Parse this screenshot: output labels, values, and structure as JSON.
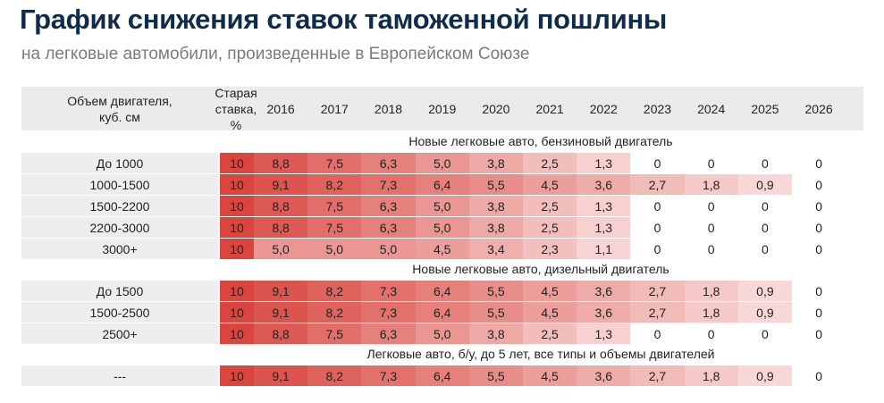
{
  "title": "График снижения ставок таможенной пошлины",
  "subtitle": "на легковые автомобили, произведенные в Европейском Союзе",
  "colors": {
    "title": "#0f2d4a",
    "header_bg": "#ebebeb",
    "row_label_bg": "#eeeeee",
    "scale_max": "#d9463f",
    "scale_min": "#fae6e5"
  },
  "chart_data": {
    "type": "table",
    "title": "График снижения ставок таможенной пошлины",
    "subtitle": "на легковые автомобили, произведенные в Европейском Союзе",
    "header": {
      "volume": "Объем двигателя,\nкуб. см",
      "old_rate": "Старая\nставка, %"
    },
    "years": [
      "2016",
      "2017",
      "2018",
      "2019",
      "2020",
      "2021",
      "2022",
      "2023",
      "2024",
      "2025",
      "2026"
    ],
    "sections": [
      {
        "name": "Новые легковые авто, бензиновый двигатель",
        "rows": [
          {
            "label": "До 1000",
            "old_rate": "10",
            "values": [
              "8,8",
              "7,5",
              "6,3",
              "5,0",
              "3,8",
              "2,5",
              "1,3",
              "0",
              "0",
              "0",
              "0"
            ]
          },
          {
            "label": "1000-1500",
            "old_rate": "10",
            "values": [
              "9,1",
              "8,2",
              "7,3",
              "6,4",
              "5,5",
              "4,5",
              "3,6",
              "2,7",
              "1,8",
              "0,9",
              "0"
            ]
          },
          {
            "label": "1500-2200",
            "old_rate": "10",
            "values": [
              "8,8",
              "7,5",
              "6,3",
              "5,0",
              "3,8",
              "2,5",
              "1,3",
              "0",
              "0",
              "0",
              "0"
            ]
          },
          {
            "label": "2200-3000",
            "old_rate": "10",
            "values": [
              "8,8",
              "7,5",
              "6,3",
              "5,0",
              "3,8",
              "2,5",
              "1,3",
              "0",
              "0",
              "0",
              "0"
            ]
          },
          {
            "label": "3000+",
            "old_rate": "10",
            "values": [
              "5,0",
              "5,0",
              "5,0",
              "4,5",
              "3,4",
              "2,3",
              "1,1",
              "0",
              "0",
              "0",
              "0"
            ]
          }
        ]
      },
      {
        "name": "Новые легковые авто, дизельный двигатель",
        "rows": [
          {
            "label": "До 1500",
            "old_rate": "10",
            "values": [
              "9,1",
              "8,2",
              "7,3",
              "6,4",
              "5,5",
              "4,5",
              "3,6",
              "2,7",
              "1,8",
              "0,9",
              "0"
            ]
          },
          {
            "label": "1500-2500",
            "old_rate": "10",
            "values": [
              "9,1",
              "8,2",
              "7,3",
              "6,4",
              "5,5",
              "4,5",
              "3,6",
              "2,7",
              "1,8",
              "0,9",
              "0"
            ]
          },
          {
            "label": "2500+",
            "old_rate": "10",
            "values": [
              "8,8",
              "7,5",
              "6,3",
              "5,0",
              "3,8",
              "2,5",
              "1,3",
              "0",
              "0",
              "0",
              "0"
            ]
          }
        ]
      },
      {
        "name": "Легковые авто, б/у, до 5 лет, все типы и объемы двигателей",
        "rows": [
          {
            "label": "---",
            "old_rate": "10",
            "values": [
              "9,1",
              "8,2",
              "7,3",
              "6,4",
              "5,5",
              "4,5",
              "3,6",
              "2,7",
              "1,8",
              "0,9",
              "0"
            ]
          }
        ]
      }
    ]
  }
}
